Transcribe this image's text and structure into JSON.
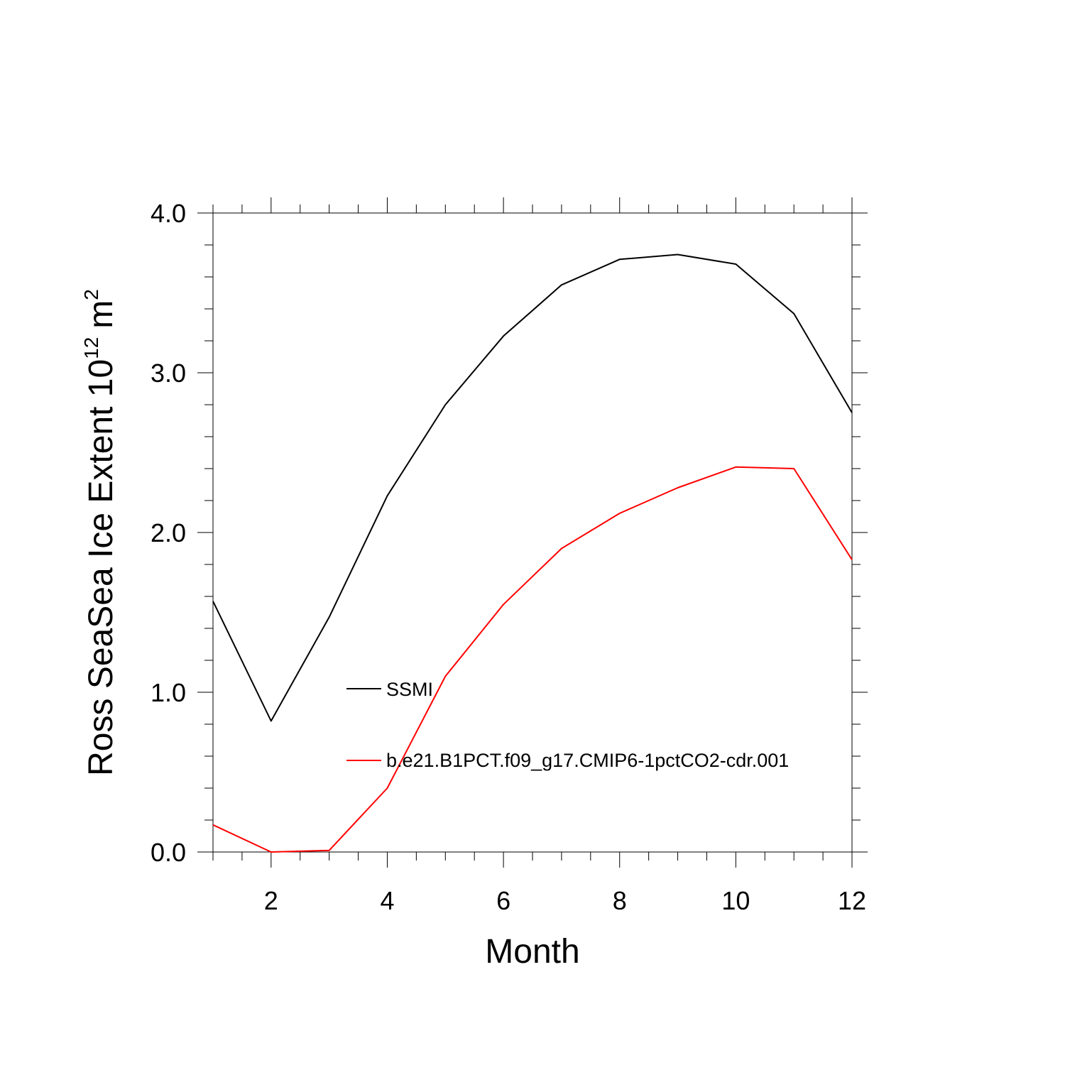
{
  "chart_data": {
    "type": "line",
    "title": "",
    "xlabel": "Month",
    "ylabel": {
      "main": "Ross SeaSea Ice Extent 10",
      "exponent": "12",
      "unit": "m",
      "unit_exponent": "2"
    },
    "xlim": [
      1,
      12
    ],
    "ylim": [
      0,
      4
    ],
    "x_ticks": [
      2,
      4,
      6,
      8,
      10,
      12
    ],
    "x_tick_labels": [
      "2",
      "4",
      "6",
      "8",
      "10",
      "12"
    ],
    "y_ticks": [
      0,
      1,
      2,
      3,
      4
    ],
    "y_tick_labels": [
      "0.0",
      "1.0",
      "2.0",
      "3.0",
      "4.0"
    ],
    "grid": false,
    "legend_position": "inside-center",
    "x": [
      1,
      2,
      3,
      4,
      5,
      6,
      7,
      8,
      9,
      10,
      11,
      12
    ],
    "series": [
      {
        "name": "SSMI",
        "color": "#000000",
        "values": [
          1.57,
          0.82,
          1.47,
          2.23,
          2.8,
          3.23,
          3.55,
          3.71,
          3.74,
          3.68,
          3.37,
          2.75
        ]
      },
      {
        "name": "b.e21.B1PCT.f09_g17.CMIP6-1pctCO2-cdr.001",
        "color": "#ff0000",
        "values": [
          0.17,
          0.0,
          0.01,
          0.4,
          1.1,
          1.55,
          1.9,
          2.12,
          2.28,
          2.41,
          2.4,
          1.83
        ]
      }
    ]
  }
}
